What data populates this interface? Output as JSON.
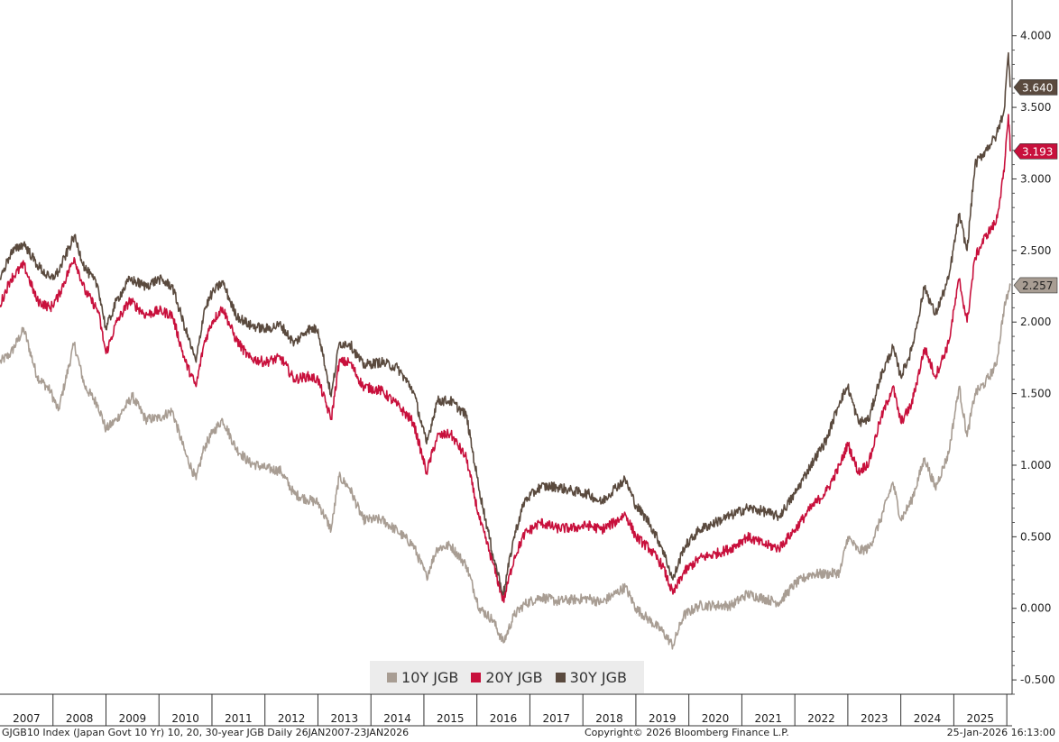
{
  "footer": {
    "left": "GJGB10 Index (Japan Govt 10 Yr) 10, 20, 30-year JGB Daily 26JAN2007-23JAN2026",
    "center": "Copyright© 2026 Bloomberg Finance L.P.",
    "right": "25-Jan-2026 16:13:00"
  },
  "colors": {
    "10Y": "#a89d93",
    "20Y": "#c8103c",
    "30Y": "#5a4a3e"
  },
  "chart_data": {
    "type": "line",
    "x_unit": "year",
    "xlim": [
      2007,
      2026.1
    ],
    "ylim": [
      -0.6,
      4.25
    ],
    "y_ticks": [
      "4.000",
      "3.500",
      "3.000",
      "2.500",
      "2.000",
      "1.500",
      "1.000",
      "0.500",
      "0.000",
      "-0.500"
    ],
    "y_tick_values": [
      4.0,
      3.5,
      3.0,
      2.5,
      2.0,
      1.5,
      1.0,
      0.5,
      0.0,
      -0.5
    ],
    "x_ticks": [
      "2007",
      "2008",
      "2009",
      "2010",
      "2011",
      "2012",
      "2013",
      "2014",
      "2015",
      "2016",
      "2017",
      "2018",
      "2019",
      "2020",
      "2021",
      "2022",
      "2023",
      "2024",
      "2025"
    ],
    "legend_position": "bottom-center",
    "grid": false,
    "series": [
      {
        "name": "10Y JGB",
        "color": "#a89d93",
        "last_label": "2.257",
        "last_value": 2.257,
        "points": [
          [
            2007.0,
            1.72
          ],
          [
            2007.2,
            1.78
          ],
          [
            2007.45,
            1.95
          ],
          [
            2007.7,
            1.62
          ],
          [
            2007.95,
            1.52
          ],
          [
            2008.1,
            1.38
          ],
          [
            2008.4,
            1.85
          ],
          [
            2008.6,
            1.55
          ],
          [
            2008.85,
            1.42
          ],
          [
            2009.0,
            1.25
          ],
          [
            2009.2,
            1.32
          ],
          [
            2009.5,
            1.48
          ],
          [
            2009.75,
            1.32
          ],
          [
            2010.0,
            1.33
          ],
          [
            2010.25,
            1.38
          ],
          [
            2010.5,
            1.08
          ],
          [
            2010.7,
            0.9
          ],
          [
            2010.85,
            1.12
          ],
          [
            2011.0,
            1.22
          ],
          [
            2011.2,
            1.32
          ],
          [
            2011.45,
            1.12
          ],
          [
            2011.7,
            1.02
          ],
          [
            2012.0,
            0.98
          ],
          [
            2012.3,
            0.96
          ],
          [
            2012.55,
            0.8
          ],
          [
            2012.8,
            0.76
          ],
          [
            2013.0,
            0.74
          ],
          [
            2013.25,
            0.55
          ],
          [
            2013.4,
            0.92
          ],
          [
            2013.6,
            0.84
          ],
          [
            2013.85,
            0.62
          ],
          [
            2014.2,
            0.62
          ],
          [
            2014.5,
            0.54
          ],
          [
            2014.8,
            0.44
          ],
          [
            2015.05,
            0.22
          ],
          [
            2015.25,
            0.42
          ],
          [
            2015.5,
            0.44
          ],
          [
            2015.8,
            0.3
          ],
          [
            2016.05,
            0.0
          ],
          [
            2016.3,
            -0.08
          ],
          [
            2016.5,
            -0.24
          ],
          [
            2016.7,
            -0.05
          ],
          [
            2016.9,
            0.03
          ],
          [
            2017.2,
            0.08
          ],
          [
            2017.5,
            0.05
          ],
          [
            2017.8,
            0.06
          ],
          [
            2018.1,
            0.07
          ],
          [
            2018.35,
            0.04
          ],
          [
            2018.6,
            0.1
          ],
          [
            2018.8,
            0.15
          ],
          [
            2019.0,
            0.0
          ],
          [
            2019.25,
            -0.08
          ],
          [
            2019.5,
            -0.16
          ],
          [
            2019.7,
            -0.26
          ],
          [
            2019.9,
            -0.05
          ],
          [
            2020.2,
            0.02
          ],
          [
            2020.5,
            0.02
          ],
          [
            2020.8,
            0.02
          ],
          [
            2021.1,
            0.1
          ],
          [
            2021.4,
            0.07
          ],
          [
            2021.7,
            0.04
          ],
          [
            2022.0,
            0.17
          ],
          [
            2022.3,
            0.24
          ],
          [
            2022.6,
            0.24
          ],
          [
            2022.85,
            0.25
          ],
          [
            2023.0,
            0.5
          ],
          [
            2023.2,
            0.4
          ],
          [
            2023.4,
            0.42
          ],
          [
            2023.6,
            0.6
          ],
          [
            2023.85,
            0.88
          ],
          [
            2024.0,
            0.62
          ],
          [
            2024.2,
            0.75
          ],
          [
            2024.45,
            1.05
          ],
          [
            2024.65,
            0.84
          ],
          [
            2024.9,
            1.08
          ],
          [
            2025.1,
            1.55
          ],
          [
            2025.25,
            1.2
          ],
          [
            2025.4,
            1.5
          ],
          [
            2025.6,
            1.58
          ],
          [
            2025.8,
            1.7
          ],
          [
            2025.95,
            2.1
          ],
          [
            2026.07,
            2.257
          ]
        ]
      },
      {
        "name": "20Y JGB",
        "color": "#c8103c",
        "last_label": "3.193",
        "last_value": 3.193,
        "points": [
          [
            2007.0,
            2.12
          ],
          [
            2007.2,
            2.3
          ],
          [
            2007.45,
            2.4
          ],
          [
            2007.7,
            2.15
          ],
          [
            2007.95,
            2.1
          ],
          [
            2008.1,
            2.18
          ],
          [
            2008.4,
            2.45
          ],
          [
            2008.6,
            2.22
          ],
          [
            2008.85,
            2.08
          ],
          [
            2009.0,
            1.78
          ],
          [
            2009.2,
            2.0
          ],
          [
            2009.45,
            2.15
          ],
          [
            2009.75,
            2.05
          ],
          [
            2010.0,
            2.08
          ],
          [
            2010.25,
            2.05
          ],
          [
            2010.5,
            1.72
          ],
          [
            2010.7,
            1.55
          ],
          [
            2010.85,
            1.85
          ],
          [
            2011.0,
            2.0
          ],
          [
            2011.2,
            2.1
          ],
          [
            2011.45,
            1.88
          ],
          [
            2011.7,
            1.75
          ],
          [
            2012.0,
            1.72
          ],
          [
            2012.3,
            1.75
          ],
          [
            2012.55,
            1.6
          ],
          [
            2012.8,
            1.62
          ],
          [
            2013.0,
            1.6
          ],
          [
            2013.25,
            1.32
          ],
          [
            2013.4,
            1.72
          ],
          [
            2013.6,
            1.72
          ],
          [
            2013.85,
            1.55
          ],
          [
            2014.2,
            1.52
          ],
          [
            2014.5,
            1.42
          ],
          [
            2014.8,
            1.3
          ],
          [
            2015.05,
            0.95
          ],
          [
            2015.25,
            1.2
          ],
          [
            2015.5,
            1.22
          ],
          [
            2015.8,
            1.05
          ],
          [
            2016.05,
            0.62
          ],
          [
            2016.3,
            0.32
          ],
          [
            2016.5,
            0.05
          ],
          [
            2016.7,
            0.35
          ],
          [
            2016.9,
            0.52
          ],
          [
            2017.2,
            0.6
          ],
          [
            2017.5,
            0.56
          ],
          [
            2017.8,
            0.56
          ],
          [
            2018.1,
            0.58
          ],
          [
            2018.35,
            0.55
          ],
          [
            2018.6,
            0.6
          ],
          [
            2018.8,
            0.66
          ],
          [
            2019.0,
            0.5
          ],
          [
            2019.25,
            0.42
          ],
          [
            2019.5,
            0.3
          ],
          [
            2019.7,
            0.1
          ],
          [
            2019.9,
            0.25
          ],
          [
            2020.2,
            0.35
          ],
          [
            2020.5,
            0.38
          ],
          [
            2020.8,
            0.42
          ],
          [
            2021.1,
            0.5
          ],
          [
            2021.4,
            0.45
          ],
          [
            2021.7,
            0.42
          ],
          [
            2022.0,
            0.55
          ],
          [
            2022.3,
            0.7
          ],
          [
            2022.6,
            0.82
          ],
          [
            2022.85,
            1.0
          ],
          [
            2023.0,
            1.15
          ],
          [
            2023.2,
            0.95
          ],
          [
            2023.4,
            1.02
          ],
          [
            2023.6,
            1.3
          ],
          [
            2023.85,
            1.55
          ],
          [
            2024.0,
            1.3
          ],
          [
            2024.2,
            1.42
          ],
          [
            2024.45,
            1.82
          ],
          [
            2024.65,
            1.62
          ],
          [
            2024.9,
            1.85
          ],
          [
            2025.1,
            2.3
          ],
          [
            2025.25,
            2.0
          ],
          [
            2025.4,
            2.45
          ],
          [
            2025.6,
            2.6
          ],
          [
            2025.8,
            2.7
          ],
          [
            2025.95,
            3.05
          ],
          [
            2026.03,
            3.45
          ],
          [
            2026.07,
            3.193
          ]
        ]
      },
      {
        "name": "30Y JGB",
        "color": "#5a4a3e",
        "last_label": "3.640",
        "last_value": 3.64,
        "points": [
          [
            2007.0,
            2.3
          ],
          [
            2007.2,
            2.48
          ],
          [
            2007.45,
            2.55
          ],
          [
            2007.7,
            2.4
          ],
          [
            2007.95,
            2.3
          ],
          [
            2008.1,
            2.35
          ],
          [
            2008.4,
            2.6
          ],
          [
            2008.6,
            2.38
          ],
          [
            2008.85,
            2.25
          ],
          [
            2009.0,
            1.95
          ],
          [
            2009.2,
            2.15
          ],
          [
            2009.45,
            2.3
          ],
          [
            2009.75,
            2.25
          ],
          [
            2010.0,
            2.3
          ],
          [
            2010.25,
            2.25
          ],
          [
            2010.5,
            1.95
          ],
          [
            2010.7,
            1.72
          ],
          [
            2010.85,
            2.08
          ],
          [
            2011.0,
            2.2
          ],
          [
            2011.2,
            2.28
          ],
          [
            2011.45,
            2.05
          ],
          [
            2011.7,
            1.98
          ],
          [
            2012.0,
            1.95
          ],
          [
            2012.3,
            1.98
          ],
          [
            2012.55,
            1.85
          ],
          [
            2012.8,
            1.95
          ],
          [
            2013.0,
            1.95
          ],
          [
            2013.25,
            1.48
          ],
          [
            2013.4,
            1.85
          ],
          [
            2013.6,
            1.85
          ],
          [
            2013.85,
            1.7
          ],
          [
            2014.2,
            1.72
          ],
          [
            2014.5,
            1.68
          ],
          [
            2014.8,
            1.52
          ],
          [
            2015.05,
            1.15
          ],
          [
            2015.25,
            1.45
          ],
          [
            2015.5,
            1.45
          ],
          [
            2015.8,
            1.35
          ],
          [
            2016.05,
            0.82
          ],
          [
            2016.3,
            0.38
          ],
          [
            2016.5,
            0.1
          ],
          [
            2016.7,
            0.5
          ],
          [
            2016.9,
            0.75
          ],
          [
            2017.2,
            0.85
          ],
          [
            2017.5,
            0.85
          ],
          [
            2017.8,
            0.82
          ],
          [
            2018.1,
            0.8
          ],
          [
            2018.35,
            0.74
          ],
          [
            2018.6,
            0.84
          ],
          [
            2018.8,
            0.9
          ],
          [
            2019.0,
            0.72
          ],
          [
            2019.25,
            0.6
          ],
          [
            2019.5,
            0.42
          ],
          [
            2019.7,
            0.2
          ],
          [
            2019.9,
            0.42
          ],
          [
            2020.2,
            0.55
          ],
          [
            2020.5,
            0.6
          ],
          [
            2020.8,
            0.65
          ],
          [
            2021.1,
            0.7
          ],
          [
            2021.4,
            0.68
          ],
          [
            2021.7,
            0.64
          ],
          [
            2022.0,
            0.8
          ],
          [
            2022.3,
            1.0
          ],
          [
            2022.6,
            1.18
          ],
          [
            2022.85,
            1.45
          ],
          [
            2023.0,
            1.55
          ],
          [
            2023.2,
            1.3
          ],
          [
            2023.4,
            1.32
          ],
          [
            2023.6,
            1.6
          ],
          [
            2023.85,
            1.82
          ],
          [
            2024.0,
            1.62
          ],
          [
            2024.2,
            1.8
          ],
          [
            2024.45,
            2.25
          ],
          [
            2024.65,
            2.05
          ],
          [
            2024.9,
            2.3
          ],
          [
            2025.1,
            2.75
          ],
          [
            2025.25,
            2.5
          ],
          [
            2025.4,
            3.1
          ],
          [
            2025.6,
            3.2
          ],
          [
            2025.8,
            3.3
          ],
          [
            2025.95,
            3.48
          ],
          [
            2026.03,
            3.88
          ],
          [
            2026.07,
            3.64
          ]
        ]
      }
    ]
  }
}
